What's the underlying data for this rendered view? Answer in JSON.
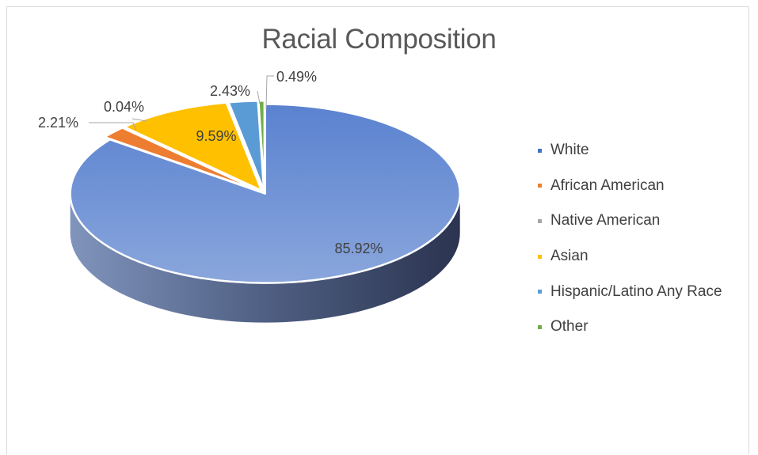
{
  "chart_data": {
    "type": "pie",
    "title": "Racial Composition",
    "categories": [
      "White",
      "African American",
      "Native American",
      "Asian",
      "Hispanic/Latino Any Race",
      "Other"
    ],
    "values": [
      85.92,
      2.21,
      0.04,
      9.59,
      2.43,
      0.49
    ],
    "data_labels": [
      "85.92%",
      "2.21%",
      "0.04%",
      "9.59%",
      "2.43%",
      "0.49%"
    ],
    "colors": [
      "#4472c4",
      "#ed7d31",
      "#a5a5a5",
      "#ffc000",
      "#5b9bd5",
      "#70ad47"
    ],
    "style": "3d-exploded",
    "legend_position": "right"
  }
}
